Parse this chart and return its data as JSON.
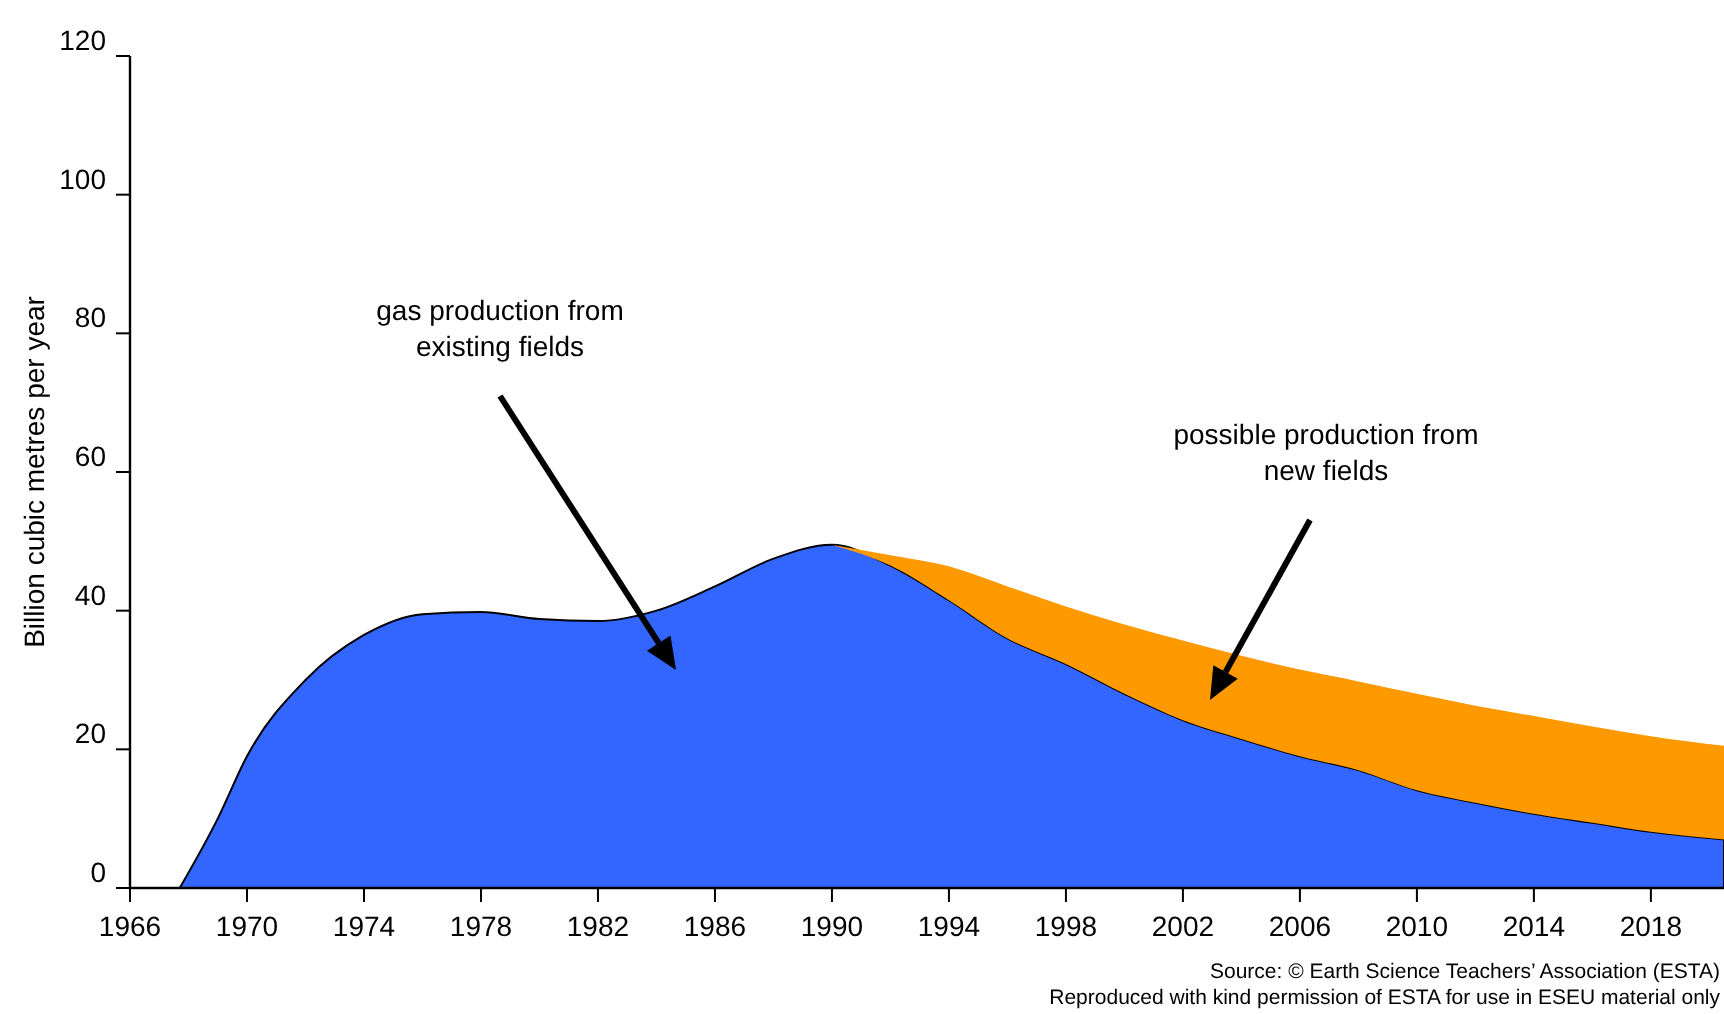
{
  "chart_data": {
    "type": "area",
    "stacked": true,
    "ylabel": "Billion cubic metres per year",
    "xlim": [
      1966,
      2020.5
    ],
    "xticks": [
      1966,
      1970,
      1974,
      1978,
      1982,
      1986,
      1990,
      1994,
      1998,
      2002,
      2006,
      2010,
      2014,
      2018
    ],
    "ylim": [
      0,
      120
    ],
    "yticks": [
      0,
      20,
      40,
      60,
      80,
      100,
      120
    ],
    "x": [
      1967.7,
      1969,
      1970,
      1972,
      1974,
      1976,
      1978,
      1980,
      1982,
      1984,
      1986,
      1988,
      1990,
      1992,
      1994,
      1996,
      1998,
      2000,
      2002,
      2004,
      2006,
      2008,
      2010,
      2012,
      2014,
      2016,
      2018,
      2020.5
    ],
    "series": [
      {
        "color": "#3366ff",
        "values": [
          0,
          10,
          19,
          30,
          36.5,
          39.5,
          39.8,
          38.8,
          38.5,
          40,
          43.5,
          47.5,
          49.5,
          46.5,
          41.5,
          36,
          32.3,
          28,
          24.2,
          21.5,
          19,
          17,
          14.1,
          12.3,
          10.7,
          9.4,
          8.1,
          7
        ]
      },
      {
        "color": "#ff9900",
        "values": [
          null,
          null,
          null,
          null,
          null,
          null,
          null,
          null,
          null,
          null,
          null,
          null,
          0,
          1.5,
          4.9,
          7.5,
          8.3,
          10,
          11.5,
          12,
          12.5,
          12.8,
          13.9,
          14,
          14.1,
          13.9,
          13.8,
          13.5
        ]
      }
    ],
    "annotations": [
      "gas production from\nexisting fields",
      "possible production from\nnew fields",
      "Source: © Earth Science Teachers’ Association (ESTA)",
      "Reproduced with kind permission of ESTA for use in ESEU material only"
    ]
  }
}
